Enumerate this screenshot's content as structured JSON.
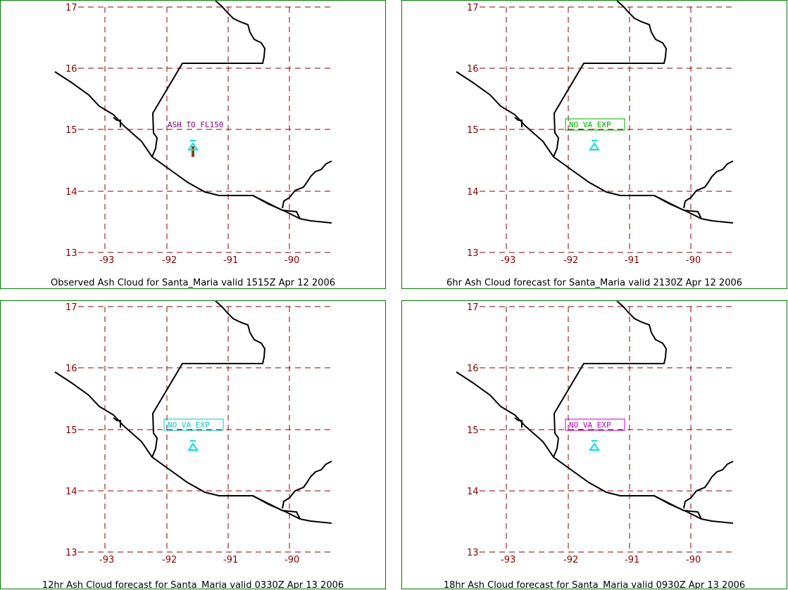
{
  "volcano": "Santa_Maria",
  "axes": {
    "lat_ticks": [
      "17",
      "16",
      "15",
      "14",
      "13"
    ],
    "lon_ticks": [
      "-93",
      "-92",
      "-91",
      "-90"
    ],
    "grid_color": "#8b0000",
    "tick_color": "#8b0000",
    "coast_color": "#000000",
    "volcano_symbol_color": "#00e0e0",
    "border_color": "#008000"
  },
  "panels": [
    {
      "caption": "Observed Ash Cloud for Santa_Maria valid 1515Z Apr 12 2006",
      "ash_label": "ASH TO FL150",
      "label_color": "#800080",
      "label_boxed": false,
      "ash_plume_color": "#8b4513"
    },
    {
      "caption": "6hr Ash Cloud forecast for Santa_Maria valid 2130Z Apr 12 2006",
      "ash_label": "NO_VA_EXP",
      "label_color": "#00b000",
      "label_boxed": true
    },
    {
      "caption": "12hr Ash Cloud forecast for Santa_Maria valid 0330Z Apr 13 2006",
      "ash_label": "NO_VA_EXP",
      "label_color": "#00c8c8",
      "label_boxed": true
    },
    {
      "caption": "18hr Ash Cloud forecast for Santa_Maria valid 0930Z Apr 13 2006",
      "ash_label": "NO_VA_EXP",
      "label_color": "#c000c0",
      "label_boxed": true
    }
  ]
}
